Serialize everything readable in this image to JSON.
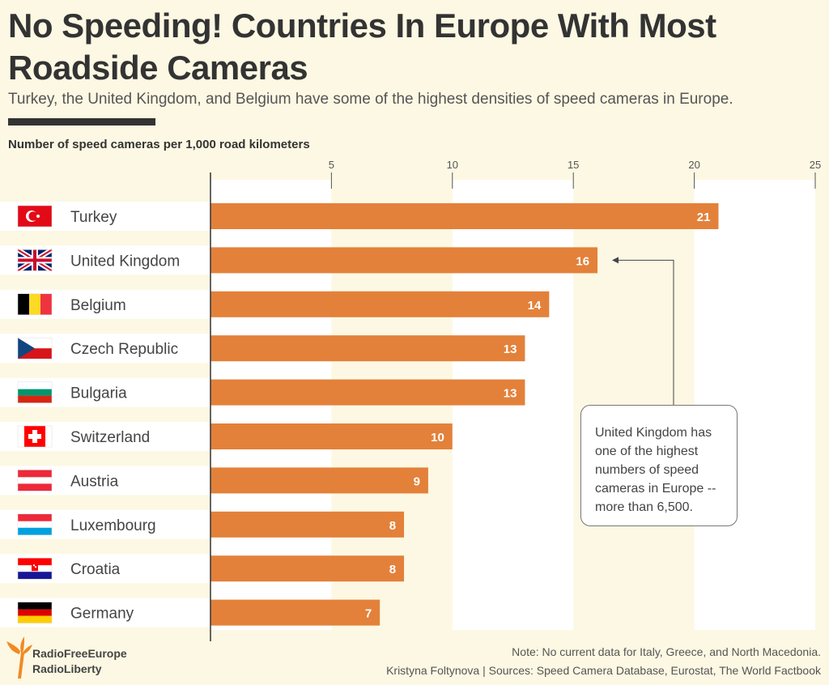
{
  "header": {
    "title": "No Speeding! Countries In Europe With Most Roadside Cameras",
    "subtitle": "Turkey, the United Kingdom, and Belgium have some of the highest densities of speed cameras in Europe."
  },
  "chart_data": {
    "type": "bar",
    "orientation": "horizontal",
    "title": "No Speeding! Countries In Europe With Most Roadside Cameras",
    "xlabel": "Number of speed cameras per 1,000 road kilometers",
    "xlim": [
      0,
      25
    ],
    "xticks": [
      5,
      10,
      15,
      20,
      25
    ],
    "grid": "alternating vertical bands",
    "bar_color": "#e3813a",
    "categories": [
      "Turkey",
      "United Kingdom",
      "Belgium",
      "Czech Republic",
      "Bulgaria",
      "Switzerland",
      "Austria",
      "Luxembourg",
      "Croatia",
      "Germany"
    ],
    "flags": [
      "flag-turkey-icon",
      "flag-uk-icon",
      "flag-belgium-icon",
      "flag-czech-icon",
      "flag-bulgaria-icon",
      "flag-switzerland-icon",
      "flag-austria-icon",
      "flag-luxembourg-icon",
      "flag-croatia-icon",
      "flag-germany-icon"
    ],
    "values": [
      21,
      16,
      14,
      13,
      13,
      10,
      9,
      8,
      8,
      7
    ],
    "annotation": {
      "target": "United Kingdom",
      "text": "United Kingdom has one of the highest numbers of speed cameras in Europe -- more than 6,500."
    }
  },
  "footer": {
    "note": "Note: No current data for Italy, Greece, and North Macedonia.",
    "credits": "Kristyna Foltynova | Sources: Speed Camera Database, Eurostat, The World Factbook",
    "logo_line1": "RadioFreeEurope",
    "logo_line2": "RadioLiberty",
    "logo_color": "#f08a24"
  }
}
